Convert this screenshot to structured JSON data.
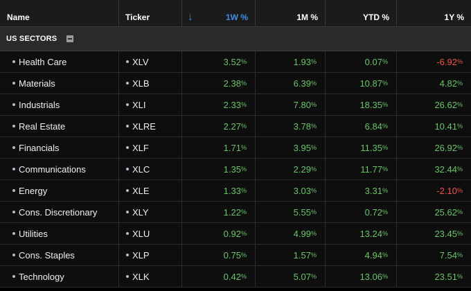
{
  "header": {
    "name": "Name",
    "ticker": "Ticker",
    "w1": "1W %",
    "m1": "1M %",
    "ytd": "YTD %",
    "y1": "1Y %",
    "sort_icon": "arrow-down-icon"
  },
  "group": {
    "label": "US SECTORS",
    "collapse_icon": "minus-square-icon"
  },
  "colors": {
    "positive": "#6ac46a",
    "negative": "#f0524a",
    "sort": "#3b8fe6"
  },
  "rows": [
    {
      "name": "Health Care",
      "ticker": "XLV",
      "w1": "3.52",
      "m1": "1.93",
      "ytd": "0.07",
      "y1": "-6.92"
    },
    {
      "name": "Materials",
      "ticker": "XLB",
      "w1": "2.38",
      "m1": "6.39",
      "ytd": "10.87",
      "y1": "4.82"
    },
    {
      "name": "Industrials",
      "ticker": "XLI",
      "w1": "2.33",
      "m1": "7.80",
      "ytd": "18.35",
      "y1": "26.62"
    },
    {
      "name": "Real Estate",
      "ticker": "XLRE",
      "w1": "2.27",
      "m1": "3.78",
      "ytd": "6.84",
      "y1": "10.41"
    },
    {
      "name": "Financials",
      "ticker": "XLF",
      "w1": "1.71",
      "m1": "3.95",
      "ytd": "11.35",
      "y1": "26.92"
    },
    {
      "name": "Communications",
      "ticker": "XLC",
      "w1": "1.35",
      "m1": "2.29",
      "ytd": "11.77",
      "y1": "32.44"
    },
    {
      "name": "Energy",
      "ticker": "XLE",
      "w1": "1.33",
      "m1": "3.03",
      "ytd": "3.31",
      "y1": "-2.10"
    },
    {
      "name": "Cons. Discretionary",
      "ticker": "XLY",
      "w1": "1.22",
      "m1": "5.55",
      "ytd": "0.72",
      "y1": "25.62"
    },
    {
      "name": "Utilities",
      "ticker": "XLU",
      "w1": "0.92",
      "m1": "4.99",
      "ytd": "13.24",
      "y1": "23.45"
    },
    {
      "name": "Cons. Staples",
      "ticker": "XLP",
      "w1": "0.75",
      "m1": "1.57",
      "ytd": "4.94",
      "y1": "7.54"
    },
    {
      "name": "Technology",
      "ticker": "XLK",
      "w1": "0.42",
      "m1": "5.07",
      "ytd": "13.06",
      "y1": "23.51"
    }
  ]
}
